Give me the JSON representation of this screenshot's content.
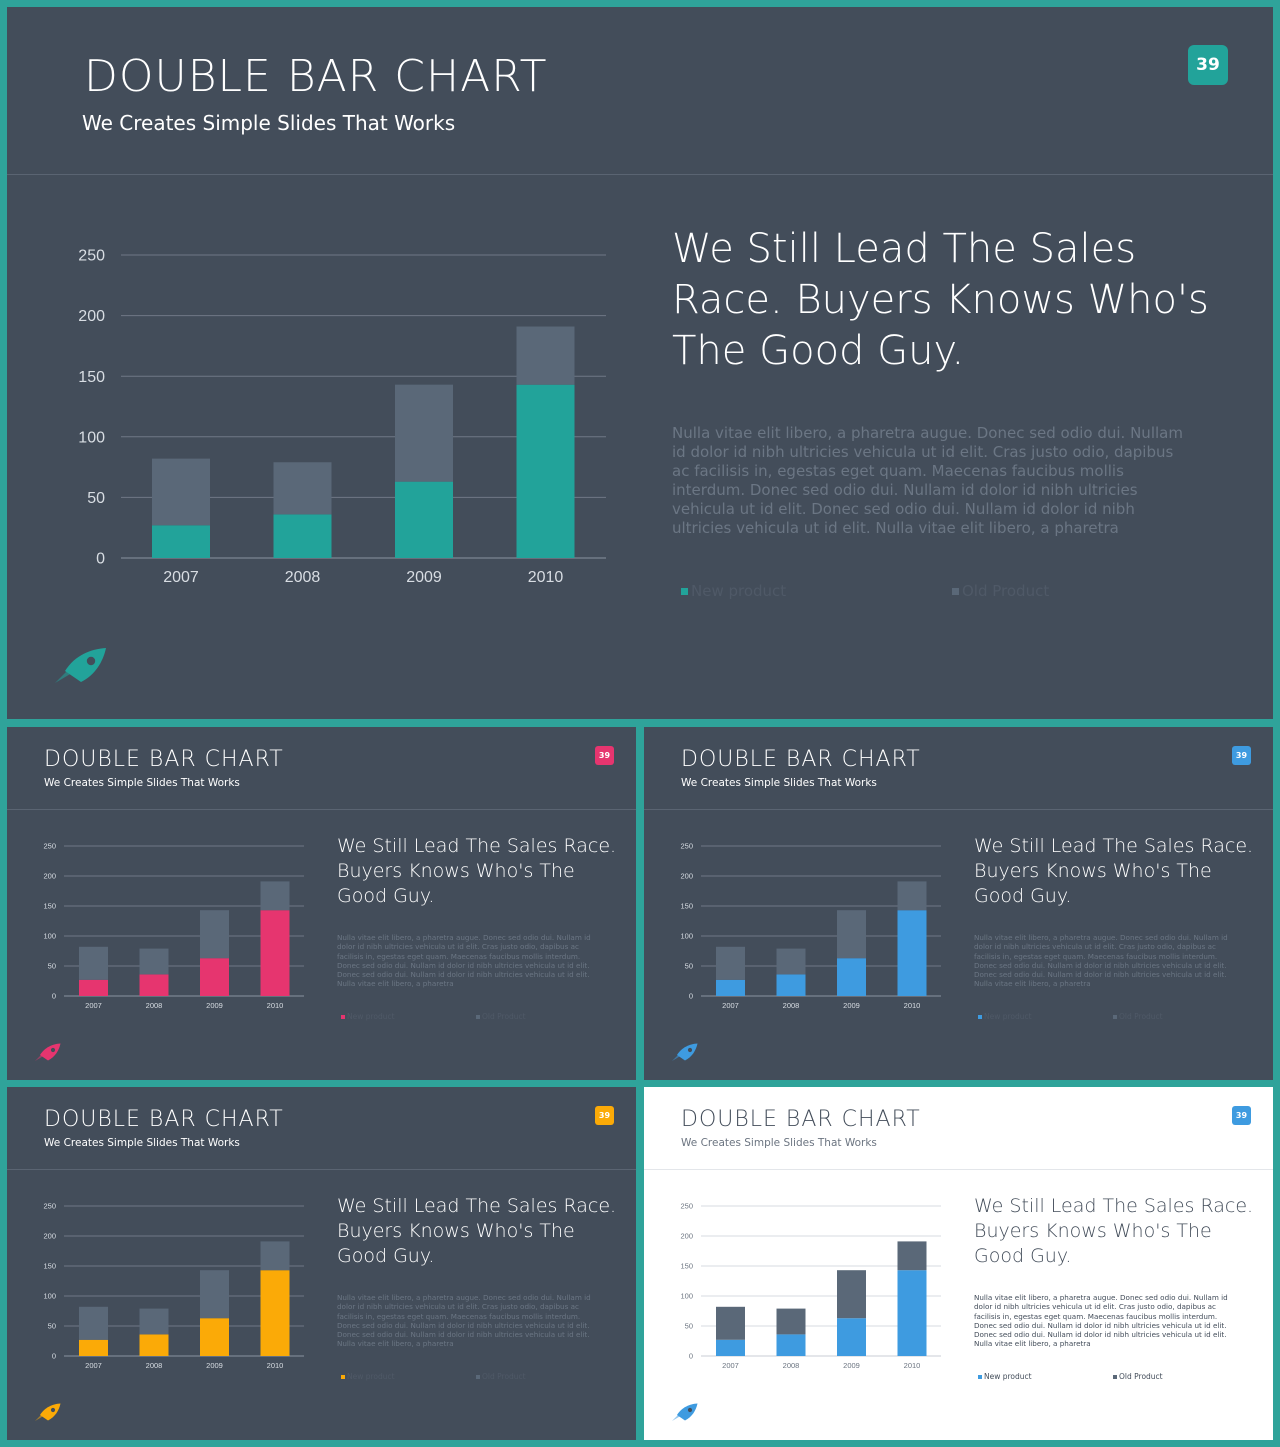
{
  "slide": {
    "title": "DOUBLE BAR CHART",
    "subtitle": "We Creates Simple Slides That Works",
    "badge": "39",
    "headline": "We Still Lead The Sales Race. Buyers Knows Who's The Good Guy.",
    "body": "Nulla vitae elit libero, a pharetra augue. Donec sed odio dui. Nullam id dolor id nibh ultricies vehicula ut id elit. Cras justo odio, dapibus ac facilisis in, egestas eget quam. Maecenas faucibus mollis interdum. Donec sed odio dui. Nullam id dolor id nibh ultricies vehicula ut id elit. Donec sed odio dui. Nullam id dolor id nibh ultricies vehicula ut id elit. Nulla vitae elit libero, a pharetra",
    "legend_new": "New product",
    "legend_old": "Old Product"
  },
  "themes": [
    {
      "variant": "dark",
      "accent": "#22a39a",
      "old_color": "#5a6878"
    },
    {
      "variant": "dark",
      "accent": "#e6356f",
      "old_color": "#5a6878"
    },
    {
      "variant": "dark",
      "accent": "#3e9be0",
      "old_color": "#5a6878"
    },
    {
      "variant": "dark",
      "accent": "#fbaa07",
      "old_color": "#5a6878"
    },
    {
      "variant": "light",
      "accent": "#3e9be0",
      "old_color": "#5a6878"
    }
  ],
  "chart_data": {
    "type": "bar",
    "stacked": true,
    "categories": [
      "2007",
      "2008",
      "2009",
      "2010"
    ],
    "series": [
      {
        "name": "New product",
        "values": [
          27,
          36,
          63,
          143
        ]
      },
      {
        "name": "Old Product",
        "values": [
          55,
          43,
          80,
          48
        ]
      }
    ],
    "yticks": [
      0,
      50,
      100,
      150,
      200,
      250
    ],
    "ylim": [
      0,
      250
    ],
    "grid": true,
    "legend": "bottom"
  }
}
